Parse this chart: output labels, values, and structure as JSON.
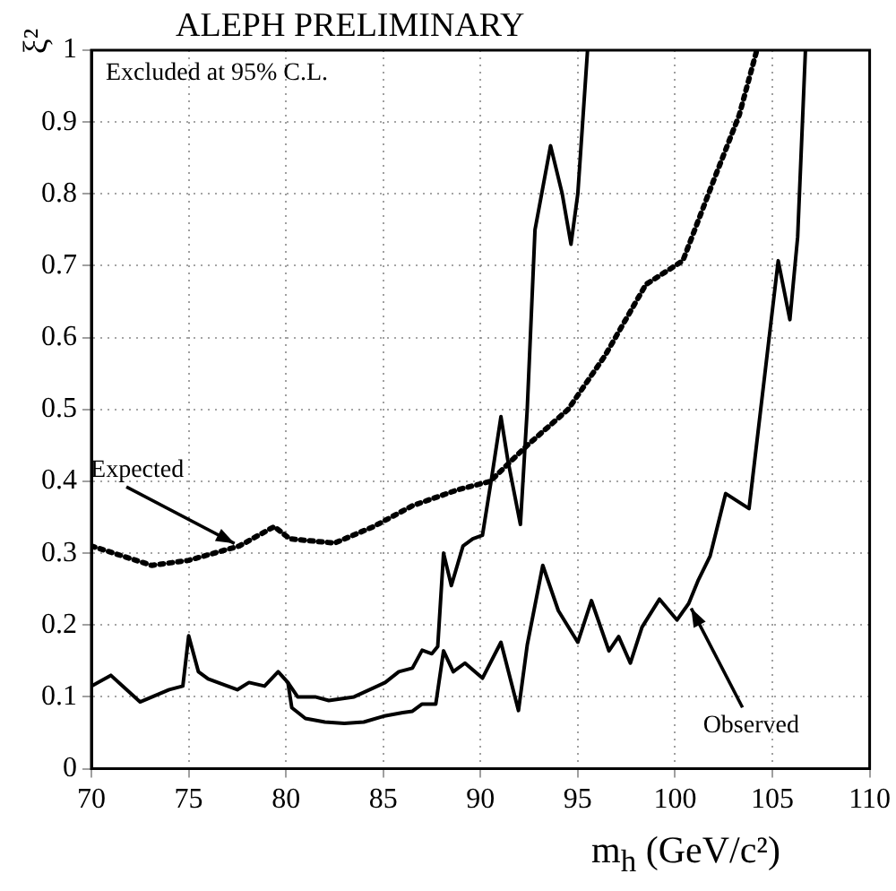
{
  "chart_data": {
    "type": "line",
    "title": "ALEPH PRELIMINARY",
    "xlabel": "m$_{h}$ (GeV/c²)",
    "ylabel": "ξ²",
    "annotations": [
      "Excluded at 95% C.L.",
      {
        "text": "Expected",
        "x": 77.6,
        "y": 0.31
      },
      {
        "text": "Observed",
        "x": 100.7,
        "y": 0.23
      }
    ],
    "series": [
      {
        "color": "#000000",
        "line_style": "solid",
        "x": [
          70,
          71,
          72.5,
          74,
          74.7,
          75,
          75.5,
          76,
          77.5,
          78.1,
          78.9,
          79.6,
          80.1,
          80.6,
          81.5,
          82.2,
          83.5,
          85.1,
          85.8,
          86.5,
          87,
          87.5,
          87.8,
          88.1,
          88.5,
          89.1,
          89.6,
          90.1,
          90.6,
          91.05,
          91.4,
          92.05,
          92.4,
          92.8,
          93.6,
          94.2,
          94.65,
          95,
          95.5
        ],
        "values": [
          0.115,
          0.13,
          0.093,
          0.11,
          0.115,
          0.185,
          0.135,
          0.125,
          0.11,
          0.12,
          0.115,
          0.135,
          0.12,
          0.1,
          0.1,
          0.095,
          0.1,
          0.12,
          0.135,
          0.14,
          0.165,
          0.16,
          0.17,
          0.3,
          0.255,
          0.31,
          0.32,
          0.325,
          0.41,
          0.49,
          0.43,
          0.34,
          0.5,
          0.75,
          0.867,
          0.8,
          0.73,
          0.8,
          1.0
        ]
      },
      {
        "color": "#000000",
        "line_style": "solid",
        "x": [
          80.1,
          80.3,
          81,
          82,
          83,
          84,
          85,
          86,
          86.5,
          87,
          87.7,
          88.1,
          88.6,
          89.2,
          90.1,
          91.05,
          91.95,
          92.4,
          93.2,
          94,
          95,
          95.7,
          96.6,
          97.1,
          97.7,
          98.3,
          99.2,
          100.1,
          100.7,
          101.2,
          101.8,
          102.6,
          103.8,
          104.4,
          105.3,
          105.9,
          106.3,
          106.7
        ],
        "values": [
          0.12,
          0.085,
          0.07,
          0.065,
          0.063,
          0.065,
          0.073,
          0.078,
          0.08,
          0.09,
          0.09,
          0.164,
          0.135,
          0.147,
          0.126,
          0.176,
          0.081,
          0.172,
          0.283,
          0.22,
          0.176,
          0.234,
          0.164,
          0.184,
          0.147,
          0.197,
          0.236,
          0.207,
          0.23,
          0.263,
          0.296,
          0.383,
          0.362,
          0.5,
          0.707,
          0.625,
          0.74,
          1.0
        ]
      },
      {
        "color": "#000000",
        "line_style": "dotted",
        "x": [
          70,
          73.1,
          75,
          77.6,
          79.4,
          80.2,
          82.5,
          84.5,
          86.5,
          88.8,
          90.5,
          92.4,
          94.5,
          96.4,
          98.5,
          100.4,
          102,
          103.3,
          104.2
        ],
        "values": [
          0.31,
          0.283,
          0.29,
          0.31,
          0.337,
          0.32,
          0.314,
          0.337,
          0.366,
          0.388,
          0.4,
          0.45,
          0.5,
          0.575,
          0.674,
          0.707,
          0.82,
          0.91,
          1.0
        ]
      }
    ],
    "xlim": [
      70,
      110
    ],
    "xticks": [
      70,
      75,
      80,
      85,
      90,
      95,
      100,
      105,
      110
    ],
    "ylim": [
      0,
      1
    ],
    "yticks": [
      0,
      0.1,
      0.2,
      0.3,
      0.4,
      0.5,
      0.6,
      0.7,
      0.8,
      0.9,
      1
    ],
    "grid": true,
    "legend": false,
    "marker": "none"
  }
}
